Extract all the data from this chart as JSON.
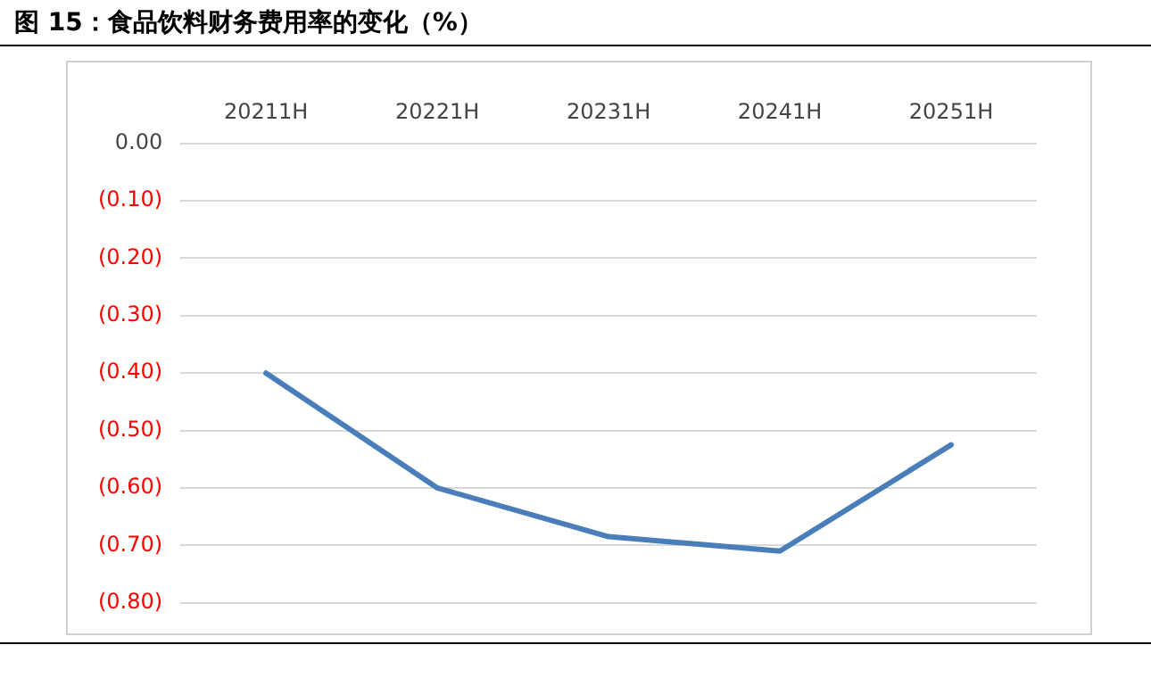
{
  "chart_data": {
    "type": "line",
    "title": "图 15：食品饮料财务费用率的变化（%）",
    "categories": [
      "20211H",
      "20221H",
      "20231H",
      "20241H",
      "20251H"
    ],
    "series": [
      {
        "color": "#4a7ebb",
        "values": [
          -0.4,
          -0.6,
          -0.685,
          -0.71,
          -0.525
        ]
      }
    ],
    "ylim": [
      -0.8,
      0
    ],
    "yticks": [
      {
        "value": 0,
        "label": "0.00"
      },
      {
        "value": -0.1,
        "label": "(0.10)"
      },
      {
        "value": -0.2,
        "label": "(0.20)"
      },
      {
        "value": -0.3,
        "label": "(0.30)"
      },
      {
        "value": -0.4,
        "label": "(0.40)"
      },
      {
        "value": -0.5,
        "label": "(0.50)"
      },
      {
        "value": -0.6,
        "label": "(0.60)"
      },
      {
        "value": -0.7,
        "label": "(0.70)"
      },
      {
        "value": -0.8,
        "label": "(0.80)"
      }
    ],
    "grid": "y",
    "legend": false,
    "marker": "none",
    "line_style": "solid"
  }
}
